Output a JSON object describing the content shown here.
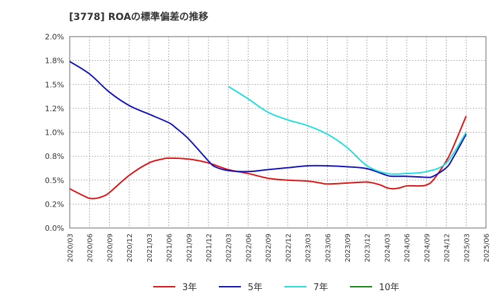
{
  "chart_data": {
    "type": "line",
    "title": "[3778]  ROAの標準偏差の推移",
    "xlabel": "",
    "ylabel": "",
    "ylim": [
      0,
      2.0
    ],
    "yticks": [
      "0.0%",
      "0.2%",
      "0.5%",
      "0.8%",
      "1.0%",
      "1.2%",
      "1.5%",
      "1.8%",
      "2.0%"
    ],
    "yticks_values": [
      0,
      0.25,
      0.5,
      0.75,
      1.0,
      1.25,
      1.5,
      1.75,
      2.0
    ],
    "x_labels": [
      "2020/03",
      "2020/06",
      "2020/09",
      "2020/12",
      "2021/03",
      "2021/06",
      "2021/09",
      "2021/12",
      "2022/03",
      "2022/06",
      "2022/09",
      "2022/12",
      "2023/03",
      "2023/06",
      "2023/09",
      "2023/12",
      "2024/03",
      "2024/06",
      "2024/09",
      "2024/12",
      "2025/03",
      "2025/06"
    ],
    "grid": true,
    "legend_position": "bottom",
    "series": [
      {
        "name": "3年",
        "color": "#dd1111",
        "x": [
          "2020/03",
          "2020/05",
          "2020/06",
          "2020/07",
          "2020/08",
          "2020/09",
          "2020/12",
          "2021/03",
          "2021/05",
          "2021/06",
          "2021/09",
          "2021/12",
          "2022/03",
          "2022/06",
          "2022/09",
          "2022/12",
          "2023/03",
          "2023/05",
          "2023/06",
          "2023/09",
          "2023/12",
          "2024/02",
          "2024/03",
          "2024/04",
          "2024/05",
          "2024/06",
          "2024/08",
          "2024/09",
          "2024/10",
          "2024/12",
          "2025/01",
          "2025/03"
        ],
        "values": [
          0.41,
          0.34,
          0.31,
          0.31,
          0.33,
          0.37,
          0.55,
          0.68,
          0.72,
          0.73,
          0.72,
          0.68,
          0.61,
          0.57,
          0.52,
          0.5,
          0.49,
          0.47,
          0.46,
          0.47,
          0.48,
          0.45,
          0.42,
          0.41,
          0.42,
          0.44,
          0.44,
          0.45,
          0.5,
          0.7,
          0.84,
          1.17
        ]
      },
      {
        "name": "5年",
        "color": "#1111bb",
        "x": [
          "2020/03",
          "2020/06",
          "2020/09",
          "2020/12",
          "2021/03",
          "2021/06",
          "2021/07",
          "2021/09",
          "2021/12",
          "2022/01",
          "2022/03",
          "2022/06",
          "2022/09",
          "2022/12",
          "2023/03",
          "2023/06",
          "2023/09",
          "2023/12",
          "2024/03",
          "2024/04",
          "2024/06",
          "2024/09",
          "2024/10",
          "2024/12",
          "2025/01",
          "2025/03"
        ],
        "values": [
          1.74,
          1.61,
          1.42,
          1.28,
          1.19,
          1.1,
          1.05,
          0.93,
          0.7,
          0.64,
          0.6,
          0.59,
          0.61,
          0.63,
          0.65,
          0.65,
          0.64,
          0.62,
          0.55,
          0.54,
          0.54,
          0.53,
          0.54,
          0.63,
          0.73,
          0.98
        ]
      },
      {
        "name": "7年",
        "color": "#22dddd",
        "x": [
          "2022/03",
          "2022/06",
          "2022/09",
          "2022/12",
          "2023/03",
          "2023/06",
          "2023/09",
          "2023/12",
          "2024/03",
          "2024/06",
          "2024/09",
          "2024/12",
          "2025/03"
        ],
        "values": [
          1.48,
          1.35,
          1.21,
          1.13,
          1.07,
          0.98,
          0.84,
          0.65,
          0.57,
          0.57,
          0.59,
          0.68,
          1.0
        ]
      },
      {
        "name": "10年",
        "color": "#118811",
        "x": [],
        "values": []
      }
    ]
  }
}
